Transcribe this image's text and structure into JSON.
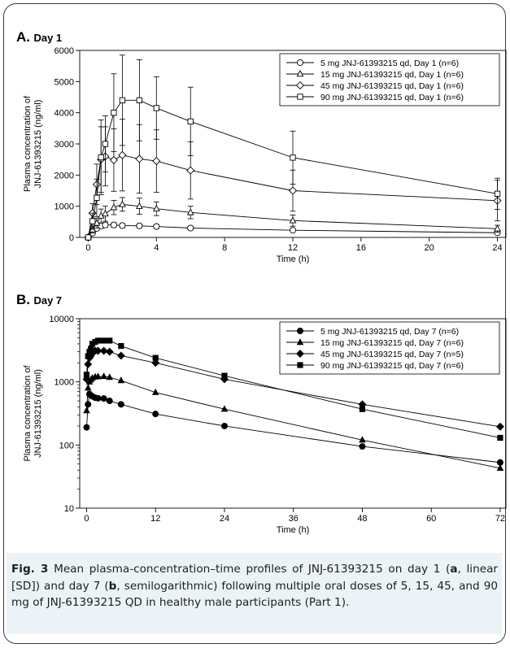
{
  "panels": [
    {
      "label_letter": "A.",
      "label_text": "Day 1",
      "chart_data": {
        "type": "line",
        "x_label": "Time (h)",
        "y_label_lines": [
          "Plasma concentration of",
          "JNJ-61393215 (ng/ml)"
        ],
        "xlim": [
          -0.5,
          24.5
        ],
        "ylim": [
          0,
          6000
        ],
        "y_scale": "linear",
        "x_ticks": [
          0,
          4,
          8,
          12,
          16,
          20,
          24
        ],
        "y_ticks": [
          0,
          1000,
          2000,
          3000,
          4000,
          5000,
          6000
        ],
        "y_tick_labels": [
          "0",
          "1000",
          "2000",
          "3000",
          "4000",
          "5000",
          "6000"
        ],
        "markers_filled": false,
        "legend_position": "top-right",
        "series": [
          {
            "name": "5 mg JNJ-61393215 qd, Day 1 (n=6)",
            "marker": "circle",
            "x": [
              0,
              0.25,
              0.5,
              0.75,
              1,
              1.5,
              2,
              3,
              4,
              6,
              12,
              24
            ],
            "y": [
              0,
              140,
              290,
              370,
              400,
              400,
              380,
              370,
              350,
              300,
              230,
              150
            ],
            "sd": [
              0,
              40,
              60,
              70,
              70,
              70,
              65,
              60,
              60,
              55,
              50,
              40
            ]
          },
          {
            "name": "15 mg JNJ-61393215 qd, Day 1 (n=6)",
            "marker": "triangle",
            "x": [
              0,
              0.25,
              0.5,
              0.75,
              1,
              1.5,
              2,
              3,
              4,
              6,
              12,
              24
            ],
            "y": [
              0,
              250,
              460,
              690,
              760,
              960,
              1060,
              1000,
              920,
              800,
              540,
              280
            ],
            "sd": [
              0,
              110,
              160,
              220,
              240,
              230,
              220,
              260,
              220,
              200,
              180,
              110
            ]
          },
          {
            "name": "45 mg JNJ-61393215 qd, Day 1 (n=6)",
            "marker": "diamond",
            "x": [
              0,
              0.25,
              0.5,
              0.75,
              1,
              1.5,
              2,
              3,
              4,
              6,
              12,
              24
            ],
            "y": [
              0,
              780,
              1700,
              2500,
              2600,
              2480,
              2640,
              2520,
              2450,
              2150,
              1500,
              1180
            ],
            "sd": [
              0,
              300,
              650,
              1050,
              950,
              1000,
              1150,
              1100,
              1000,
              920,
              660,
              650
            ]
          },
          {
            "name": "90 mg JNJ-61393215 qd, Day 1 (n=6)",
            "marker": "square",
            "x": [
              0,
              0.25,
              0.5,
              0.75,
              1,
              1.5,
              2,
              3,
              4,
              6,
              12,
              24
            ],
            "y": [
              0,
              520,
              1270,
              2570,
              3000,
              4000,
              4400,
              4400,
              4150,
              3720,
              2560,
              1400
            ],
            "sd": [
              0,
              260,
              600,
              1200,
              900,
              1250,
              1450,
              1300,
              1000,
              1100,
              850,
              500
            ]
          }
        ]
      }
    },
    {
      "label_letter": "B.",
      "label_text": "Day 7",
      "chart_data": {
        "type": "line",
        "x_label": "Time (h)",
        "y_label_lines": [
          "Plasma concentration of",
          "JNJ-61393215 (ng/ml)"
        ],
        "xlim": [
          -1.2,
          73
        ],
        "ylim": [
          10,
          10000
        ],
        "y_scale": "log",
        "x_ticks": [
          0,
          12,
          24,
          36,
          48,
          60,
          72
        ],
        "y_ticks": [
          10,
          100,
          1000,
          10000
        ],
        "y_tick_labels": [
          "10",
          "100",
          "1000",
          "10000"
        ],
        "markers_filled": true,
        "legend_position": "top-right",
        "series": [
          {
            "name": "5 mg JNJ-61393215 qd, Day 7 (n=6)",
            "marker": "circle",
            "x": [
              0,
              0.25,
              0.5,
              0.75,
              1,
              1.5,
              2,
              3,
              4,
              6,
              12,
              24,
              48,
              72
            ],
            "y": [
              190,
              440,
              640,
              610,
              590,
              560,
              550,
              545,
              500,
              440,
              310,
              200,
              95,
              53
            ]
          },
          {
            "name": "15 mg JNJ-61393215 qd, Day 7 (n=6)",
            "marker": "triangle",
            "x": [
              0,
              0.25,
              0.5,
              0.75,
              1,
              1.5,
              2,
              3,
              4,
              6,
              12,
              24,
              48,
              72
            ],
            "y": [
              350,
              800,
              1000,
              1080,
              1150,
              1200,
              1210,
              1220,
              1180,
              1050,
              680,
              370,
              120,
              43
            ]
          },
          {
            "name": "45 mg JNJ-61393215 qd, Day 7 (n=5)",
            "marker": "diamond",
            "x": [
              0,
              0.25,
              0.5,
              0.75,
              1,
              1.5,
              2,
              3,
              4,
              6,
              12,
              24,
              48,
              72
            ],
            "y": [
              1100,
              1900,
              2400,
              2600,
              2900,
              3100,
              3100,
              3100,
              3000,
              2600,
              2000,
              1100,
              440,
              195
            ]
          },
          {
            "name": "90 mg JNJ-61393215 qd, Day 7 (n=6)",
            "marker": "square",
            "x": [
              0,
              0.25,
              0.5,
              0.75,
              1,
              1.5,
              2,
              3,
              4,
              6,
              12,
              24,
              48,
              72
            ],
            "y": [
              1300,
              2550,
              3000,
              3350,
              4000,
              4300,
              4500,
              4500,
              4500,
              3700,
              2400,
              1250,
              370,
              130
            ]
          }
        ]
      }
    }
  ],
  "caption": {
    "fig_label": "Fig. 3",
    "text_1": " Mean plasma-concentration–time profiles of JNJ-61393215 on day 1 (",
    "bold_a": "a",
    "text_2": ", linear [SD]) and day 7 (",
    "bold_b": "b",
    "text_3": ", semilogarithmic) following multiple oral doses of 5, 15, 45, and 90 mg of JNJ-61393215 QD in healthy male participants (Part 1)."
  }
}
